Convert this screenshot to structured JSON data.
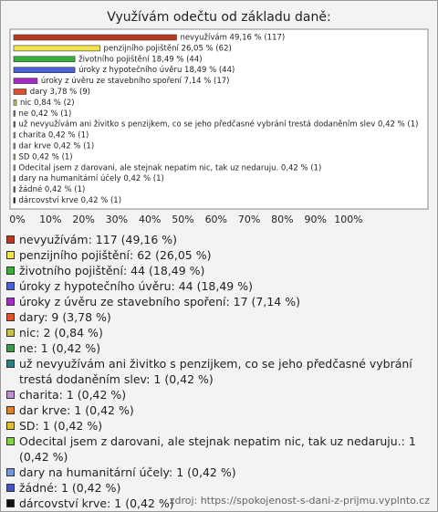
{
  "chart_data": {
    "type": "bar",
    "title": "Využívám odečtu od základu daně:",
    "values": [
      49.16,
      26.05,
      18.49,
      18.49,
      7.14,
      3.78,
      0.84,
      0.42,
      0.42,
      0.42,
      0.42,
      0.42,
      0.42,
      0.42,
      0.42,
      0.42
    ],
    "value_labels": [
      "nevyužívám 49,16 % (117)",
      "penzijního pojištění 26,05 % (62)",
      "životního pojištění 18,49 % (44)",
      "úroky z hypotečního úvěru 18,49 % (44)",
      "úroky z úvěru ze stavebního spoření 7,14 % (17)",
      "dary 3,78 % (9)",
      "nic 0,84 % (2)",
      "ne 0,42 % (1)",
      "už nevyužívám ani živitko s penzijkem, co se jeho předčasné vybrání trestá dodaněním slev 0,42 % (1)",
      "charita 0,42 % (1)",
      "dar krve 0,42 % (1)",
      "SD 0,42 % (1)",
      "Odecital jsem z darovani, ale stejnak nepatim nic, tak uz nedaruju. 0,42 % (1)",
      "dary na humanitární účely 0,42 % (1)",
      "žádné 0,42 % (1)",
      "dárcovství krve 0,42 % (1)"
    ],
    "legend": [
      "nevyužívám: 117 (49,16 %)",
      "penzijního pojištění: 62 (26,05 %)",
      "životního pojištění: 44 (18,49 %)",
      "úroky z hypotečního úvěru: 44 (18,49 %)",
      "úroky z úvěru ze stavebního spoření: 17 (7,14 %)",
      "dary: 9 (3,78 %)",
      "nic: 2 (0,84 %)",
      "ne: 1 (0,42 %)",
      "už nevyužívám ani živitko s penzijkem, co se jeho předčasné vybrání trestá dodaněním slev: 1 (0,42 %)",
      "charita: 1 (0,42 %)",
      "dar krve: 1 (0,42 %)",
      "SD: 1 (0,42 %)",
      "Odecital jsem z darovani, ale stejnak nepatim nic, tak uz nedaruju.: 1 (0,42 %)",
      "dary na humanitární účely: 1 (0,42 %)",
      "žádné: 1 (0,42 %)",
      "dárcovství krve: 1 (0,42 %)"
    ],
    "colors": [
      "#b83a22",
      "#f2e44a",
      "#38b038",
      "#4a62d8",
      "#a62ac8",
      "#e0502a",
      "#c8c048",
      "#3e9a48",
      "#2e8080",
      "#c090d0",
      "#e08028",
      "#e0c028",
      "#86d048",
      "#7494d8",
      "#4456c4",
      "#111111"
    ],
    "xlim": [
      0,
      100
    ],
    "xticks": [
      {
        "value": 0,
        "label": "0%"
      },
      {
        "value": 10,
        "label": "10%"
      },
      {
        "value": 20,
        "label": "20%"
      },
      {
        "value": 30,
        "label": "30%"
      },
      {
        "value": 40,
        "label": "40%"
      },
      {
        "value": 50,
        "label": "50%"
      },
      {
        "value": 60,
        "label": "60%"
      },
      {
        "value": 70,
        "label": "70%"
      },
      {
        "value": 80,
        "label": "80%"
      },
      {
        "value": 90,
        "label": "90%"
      },
      {
        "value": 100,
        "label": "100%"
      }
    ],
    "source": "zdroj: https://spokojenost-s-dani-z-prijmu.vyplnto.cz"
  }
}
